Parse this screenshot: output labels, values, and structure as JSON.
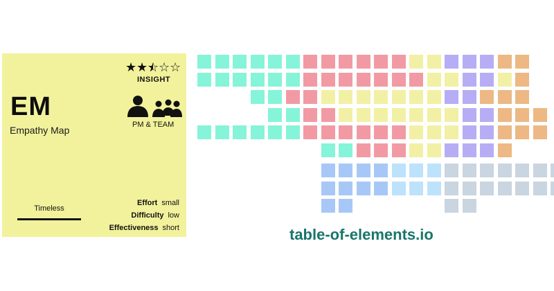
{
  "card": {
    "abbreviation": "EM",
    "name": "Empathy Map",
    "rating": 2.5,
    "rating_max": 5,
    "category": "INSIGHT",
    "audience_icon": "people-group-icon",
    "audience": "PM & TEAM",
    "timing": "Timeless",
    "metrics": [
      {
        "label": "Effort",
        "value": "small"
      },
      {
        "label": "Difficulty",
        "value": "low"
      },
      {
        "label": "Effectiveness",
        "value": "short"
      }
    ],
    "background_color": "#f2f29c"
  },
  "brand": "table-of-elements.io",
  "palette": {
    "T": "#86f4d8",
    "R": "#f29aa4",
    "Y": "#f2f0a4",
    "P": "#b6adf5",
    "O": "#edb884",
    "B": "#a7c8f7",
    "L": "#bde2fb",
    "G": "#c9d5e0"
  },
  "table_rows": [
    "TTTTTTRRRRRRYYPPPOO",
    "TTTTTTRRRRRRRYYPPYO",
    "...TTRRYYYYYYYPPOOO",
    "....TTRRYYYYYYYPPOOO",
    "TTTTTTRRRRRRYYYPPOOO",
    ".......TTRRRYYPPPO",
    "",
    ".......BBBBLLLGGGGGGG",
    ".......BBBBLLLGGGGGGG",
    ".......BB.....GG"
  ]
}
